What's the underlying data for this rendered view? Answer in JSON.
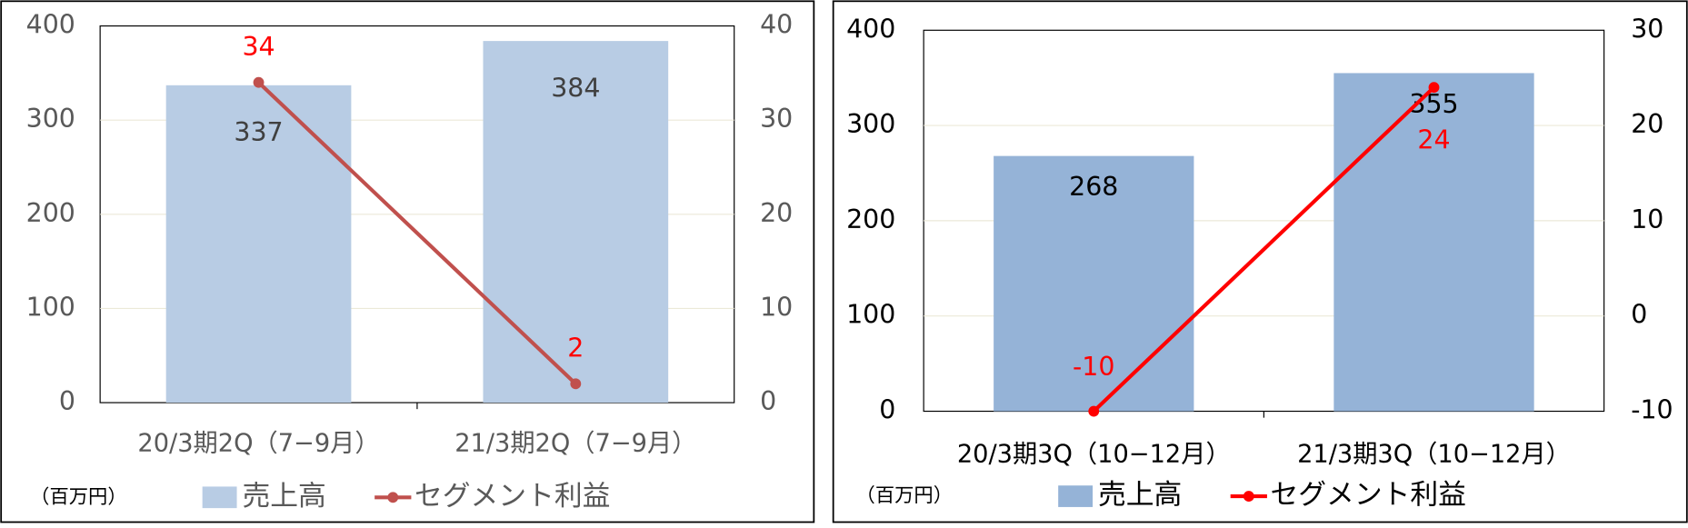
{
  "chart_data": [
    {
      "type": "combo",
      "unit_note": "（百万円）",
      "categories": [
        "20/3期2Q（7−9月）",
        "21/3期2Q（7−9月）"
      ],
      "series": [
        {
          "name": "売上高",
          "type": "bar",
          "color": "#b8cce4",
          "values": [
            337,
            384
          ]
        },
        {
          "name": "セグメント利益",
          "type": "line",
          "axis": "y2",
          "color": "#c0504d",
          "values": [
            34,
            2
          ]
        }
      ],
      "ylim": [
        0,
        400
      ],
      "yticks": [
        0,
        100,
        200,
        300,
        400
      ],
      "y2lim": [
        0,
        40
      ],
      "y2ticks": [
        0,
        10,
        20,
        30,
        40
      ],
      "grid": true
    },
    {
      "type": "combo",
      "unit_note": "（百万円）",
      "categories": [
        "20/3期3Q（10−12月）",
        "21/3期3Q（10−12月）"
      ],
      "series": [
        {
          "name": "売上高",
          "type": "bar",
          "color": "#95b3d7",
          "values": [
            268,
            355
          ]
        },
        {
          "name": "セグメント利益",
          "type": "line",
          "axis": "y2",
          "color": "#ff0000",
          "values": [
            -10,
            24
          ]
        }
      ],
      "ylim": [
        0,
        400
      ],
      "yticks": [
        0,
        100,
        200,
        300,
        400
      ],
      "y2lim": [
        -10,
        30
      ],
      "y2ticks": [
        -10,
        0,
        10,
        20,
        30
      ],
      "grid": true
    }
  ]
}
